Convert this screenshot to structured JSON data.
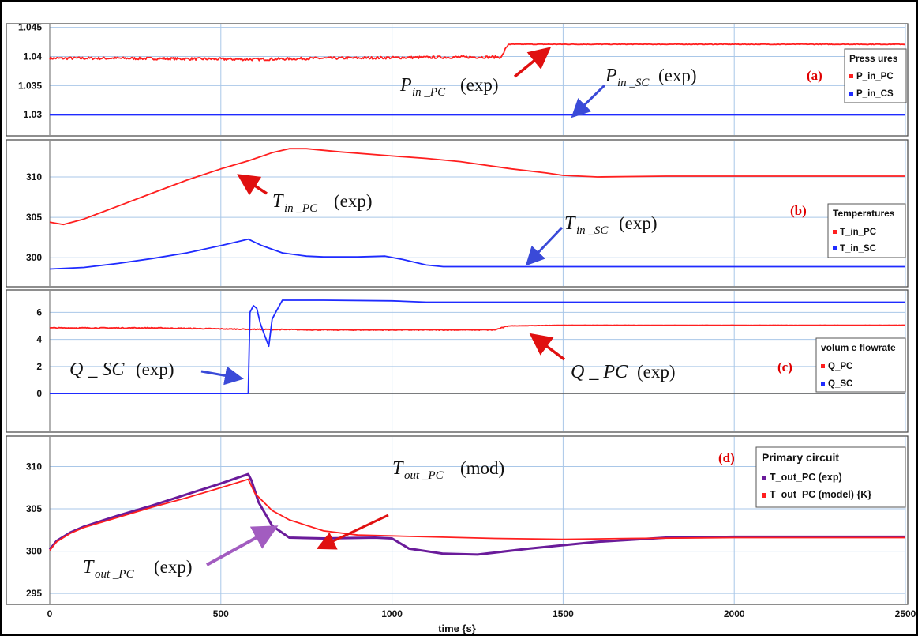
{
  "colors": {
    "red": "#ff1f1f",
    "blue": "#1f2bff",
    "purple": "#6a1b9a",
    "arrow_red": "#e01010",
    "arrow_blue": "#3a4ad8",
    "arrow_purple": "#a25cc0",
    "grid": "#a9c7e8",
    "panel_tag": "#e00000"
  },
  "chart_data": [
    {
      "type": "line",
      "panel": "(a)",
      "xlim": [
        0,
        2500
      ],
      "ylim": [
        1.0265,
        1.0455
      ],
      "yticks": [
        "1.045",
        "1.04",
        "1.035",
        "1.03"
      ],
      "ytick_values": [
        1.045,
        1.04,
        1.035,
        1.03
      ],
      "legend": {
        "title": "Press ures",
        "position": "right",
        "entries": [
          "P_in_PC",
          "P_in_CS"
        ]
      },
      "series": [
        {
          "name": "P_in_PC",
          "color": "red",
          "noise": 0.00022,
          "x": [
            0,
            200,
            400,
            600,
            800,
            1000,
            1200,
            1320,
            1330,
            1340,
            1500,
            2000,
            2500
          ],
          "y": [
            1.0397,
            1.0397,
            1.0396,
            1.0395,
            1.0397,
            1.0398,
            1.0399,
            1.0399,
            1.0411,
            1.0421,
            1.0421,
            1.0421,
            1.0421
          ]
        },
        {
          "name": "P_in_CS",
          "color": "blue",
          "noise": 0,
          "x": [
            0,
            2500
          ],
          "y": [
            1.03,
            1.03
          ]
        }
      ],
      "annotations": [
        {
          "main": "P",
          "sub": "in _PC",
          "paren": "(exp)"
        },
        {
          "main": "P",
          "sub": "in _SC",
          "paren": "(exp)"
        }
      ]
    },
    {
      "type": "line",
      "panel": "(b)",
      "xlim": [
        0,
        2500
      ],
      "ylim": [
        296.5,
        314.5
      ],
      "yticks": [
        "310",
        "305",
        "300"
      ],
      "ytick_values": [
        310,
        305,
        300
      ],
      "legend": {
        "title": "Temperatures",
        "position": "right",
        "entries": [
          "T_in_PC",
          "T_in_SC"
        ]
      },
      "series": [
        {
          "name": "T_in_PC",
          "color": "red",
          "noise": 0,
          "x": [
            0,
            40,
            100,
            200,
            300,
            400,
            500,
            580,
            650,
            700,
            750,
            850,
            1000,
            1100,
            1200,
            1350,
            1450,
            1500,
            1600,
            1800,
            2000,
            2500
          ],
          "y": [
            304.4,
            304.1,
            304.8,
            306.4,
            308.0,
            309.6,
            311.0,
            312.0,
            313.0,
            313.5,
            313.5,
            313.1,
            312.6,
            312.3,
            311.9,
            311.0,
            310.5,
            310.2,
            310.0,
            310.1,
            310.1,
            310.1
          ]
        },
        {
          "name": "T_in_SC",
          "color": "blue",
          "noise": 0,
          "x": [
            0,
            100,
            200,
            300,
            400,
            500,
            580,
            620,
            680,
            750,
            800,
            900,
            980,
            1030,
            1100,
            1150,
            1300,
            1500,
            2000,
            2500
          ],
          "y": [
            298.6,
            298.8,
            299.3,
            299.9,
            300.6,
            301.5,
            302.3,
            301.5,
            300.6,
            300.2,
            300.1,
            300.1,
            300.2,
            299.8,
            299.1,
            298.9,
            298.9,
            298.9,
            298.9,
            298.9
          ]
        }
      ],
      "annotations": [
        {
          "main": "T",
          "sub": "in _PC",
          "paren": "(exp)"
        },
        {
          "main": "T",
          "sub": "in _SC",
          "paren": "(exp)"
        }
      ]
    },
    {
      "type": "line",
      "panel": "(c)",
      "xlim": [
        0,
        2500
      ],
      "ylim": [
        -2.8,
        7.6
      ],
      "yticks": [
        "6",
        "4",
        "2",
        "0"
      ],
      "ytick_values": [
        6,
        4,
        2,
        0
      ],
      "legend": {
        "title": "volum e flowrate",
        "position": "right",
        "entries": [
          "Q_PC",
          "Q_SC"
        ]
      },
      "series": [
        {
          "name": "Q_PC",
          "color": "red",
          "noise": 0.03,
          "x": [
            0,
            300,
            580,
            800,
            1000,
            1300,
            1340,
            1500,
            2000,
            2500
          ],
          "y": [
            4.85,
            4.85,
            4.75,
            4.7,
            4.7,
            4.7,
            5.0,
            5.05,
            5.05,
            5.05
          ]
        },
        {
          "name": "Q_SC",
          "color": "blue",
          "noise": 0,
          "x": [
            0,
            575,
            580,
            585,
            595,
            605,
            615,
            625,
            640,
            650,
            660,
            680,
            700,
            800,
            1000,
            1100,
            1500,
            2000,
            2500
          ],
          "y": [
            0,
            0,
            0,
            6.0,
            6.5,
            6.3,
            5.2,
            4.5,
            3.5,
            5.5,
            6.0,
            6.9,
            6.9,
            6.9,
            6.85,
            6.75,
            6.75,
            6.75,
            6.75
          ]
        }
      ],
      "annotations": [
        {
          "main": "Q _ SC",
          "sub": "",
          "paren": "(exp)"
        },
        {
          "main": "Q _ PC",
          "sub": "",
          "paren": "(exp)"
        }
      ]
    },
    {
      "type": "line",
      "panel": "(d)",
      "xlim": [
        0,
        2500
      ],
      "ylim": [
        293.8,
        313.5
      ],
      "yticks": [
        "310",
        "305",
        "300",
        "295"
      ],
      "ytick_values": [
        310,
        305,
        300,
        295
      ],
      "xticks": [
        "0",
        "500",
        "1000",
        "1500",
        "2000",
        "2500"
      ],
      "xtick_values": [
        0,
        500,
        1000,
        1500,
        2000,
        2500
      ],
      "xlabel": "time {s}",
      "legend": {
        "title": "Primary circuit",
        "position": "right",
        "entries": [
          "T_out_PC (exp)",
          "T_out_PC (model) {K}"
        ]
      },
      "series": [
        {
          "name": "T_out_PC (exp)",
          "color": "purple",
          "noise": 0,
          "x": [
            0,
            20,
            60,
            100,
            200,
            300,
            400,
            500,
            580,
            590,
            610,
            650,
            700,
            800,
            950,
            1000,
            1050,
            1150,
            1250,
            1400,
            1600,
            1800,
            2000,
            2500
          ],
          "y": [
            300.2,
            301.2,
            302.2,
            302.9,
            304.2,
            305.4,
            306.7,
            308.0,
            309.1,
            308.3,
            305.8,
            303.0,
            301.6,
            301.5,
            301.6,
            301.5,
            300.3,
            299.7,
            299.6,
            300.3,
            301.1,
            301.6,
            301.7,
            301.7
          ]
        },
        {
          "name": "T_out_PC (model) {K}",
          "color": "red",
          "noise": 0,
          "x": [
            0,
            20,
            60,
            100,
            200,
            300,
            400,
            500,
            580,
            600,
            650,
            700,
            800,
            900,
            1000,
            1100,
            1300,
            1500,
            1700,
            2000,
            2500
          ],
          "y": [
            300.1,
            301.1,
            302.1,
            302.8,
            304.0,
            305.2,
            306.3,
            307.5,
            308.5,
            306.8,
            304.8,
            303.7,
            302.4,
            301.9,
            301.8,
            301.7,
            301.5,
            301.4,
            301.5,
            301.6,
            301.6
          ]
        }
      ],
      "annotations": [
        {
          "main": "T",
          "sub": "out _PC",
          "paren": "(mod)"
        },
        {
          "main": "T",
          "sub": "out _PC",
          "paren": "(exp)"
        }
      ]
    }
  ]
}
